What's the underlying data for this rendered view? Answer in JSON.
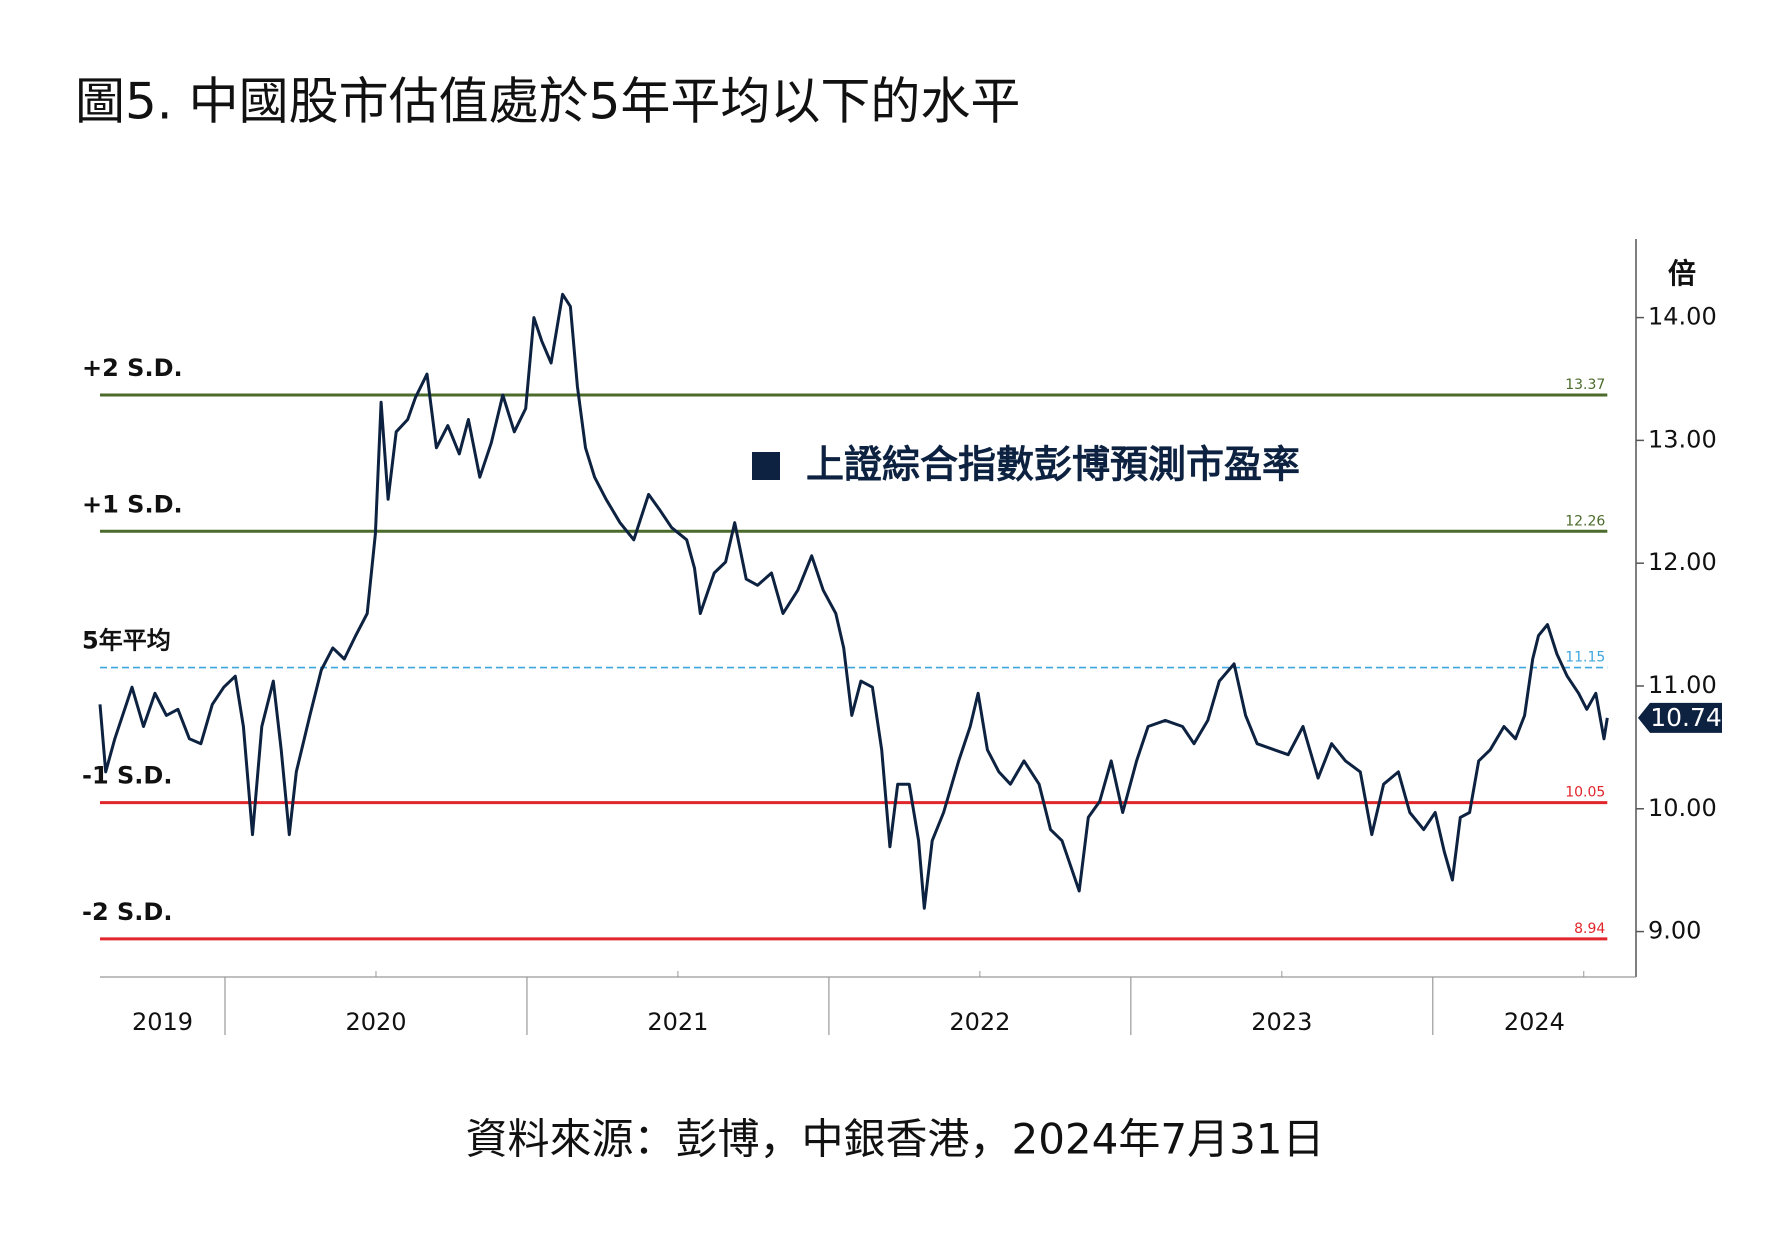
{
  "chart_data": {
    "type": "line",
    "title": "圖5. 中國股市估值處於5年平均以下的水平",
    "source": "資料來源：彭博，中銀香港，2024年7月31日",
    "y_unit": "倍",
    "xlim": [
      2019.586,
      2024.673
    ],
    "ylim": [
      8.63,
      14.64
    ],
    "xticks": [
      2019,
      2020,
      2021,
      2022,
      2023,
      2024
    ],
    "yticks": [
      {
        "value": 9,
        "label": "9.00"
      },
      {
        "value": 10,
        "label": "10.00"
      },
      {
        "value": 11,
        "label": "11.00"
      },
      {
        "value": 12,
        "label": "12.00"
      },
      {
        "value": 13,
        "label": "13.00"
      },
      {
        "value": 14,
        "label": "14.00"
      }
    ],
    "reference_lines": [
      {
        "name": "+2 S.D.",
        "value": 13.37,
        "color": "#4b6b2b",
        "dashed": false
      },
      {
        "name": "+1 S.D.",
        "value": 12.26,
        "color": "#4b6b2b",
        "dashed": false
      },
      {
        "name": "5年平均",
        "value": 11.15,
        "color": "#3ea6df",
        "dashed": true
      },
      {
        "name": "-1 S.D.",
        "value": 10.05,
        "color": "#e0262b",
        "dashed": false
      },
      {
        "name": "-2 S.D.",
        "value": 8.94,
        "color": "#e0262b",
        "dashed": false
      }
    ],
    "x": [
      2019.586,
      2019.605,
      2019.635,
      2019.692,
      2019.73,
      2019.768,
      2019.806,
      2019.844,
      2019.882,
      2019.92,
      2019.958,
      2019.996,
      2020.034,
      2020.061,
      2020.091,
      2020.122,
      2020.16,
      2020.186,
      2020.213,
      2020.236,
      2020.281,
      2020.319,
      2020.357,
      2020.395,
      2020.433,
      2020.471,
      2020.498,
      2020.517,
      2020.54,
      2020.567,
      2020.605,
      2020.631,
      2020.669,
      2020.7,
      2020.738,
      2020.776,
      2020.806,
      2020.844,
      2020.882,
      2020.92,
      2020.958,
      2020.996,
      2021.023,
      2021.049,
      2021.08,
      2021.118,
      2021.144,
      2021.167,
      2021.194,
      2021.224,
      2021.262,
      2021.308,
      2021.354,
      2021.403,
      2021.441,
      2021.479,
      2021.529,
      2021.555,
      2021.574,
      2021.62,
      2021.658,
      2021.688,
      2021.726,
      2021.764,
      2021.81,
      2021.848,
      2021.897,
      2021.943,
      2021.981,
      2022.023,
      2022.049,
      2022.076,
      2022.106,
      2022.144,
      2022.175,
      2022.202,
      2022.228,
      2022.266,
      2022.297,
      2022.316,
      2022.342,
      2022.38,
      2022.43,
      2022.468,
      2022.494,
      2022.525,
      2022.563,
      2022.601,
      2022.646,
      2022.696,
      2022.734,
      2022.772,
      2022.829,
      2022.859,
      2022.897,
      2022.935,
      2022.973,
      2023.019,
      2023.057,
      2023.114,
      2023.171,
      2023.209,
      2023.255,
      2023.293,
      2023.342,
      2023.38,
      2023.418,
      2023.475,
      2023.521,
      2023.57,
      2023.62,
      2023.665,
      2023.711,
      2023.76,
      2023.798,
      2023.837,
      2023.886,
      2023.924,
      2023.97,
      2024.008,
      2024.038,
      2024.065,
      2024.091,
      2024.122,
      2024.152,
      2024.19,
      2024.236,
      2024.274,
      2024.304,
      2024.331,
      2024.35,
      2024.38,
      2024.411,
      2024.445,
      2024.483,
      2024.51,
      2024.54,
      2024.567,
      2024.578
    ],
    "series": [
      {
        "name": "上證綜合指數彭博預測市盈率",
        "color": "#0d2240",
        "values": [
          10.85,
          10.3,
          10.57,
          10.99,
          10.67,
          10.94,
          10.76,
          10.81,
          10.57,
          10.53,
          10.85,
          10.99,
          11.08,
          10.67,
          9.79,
          10.67,
          11.04,
          10.48,
          9.79,
          10.3,
          10.76,
          11.13,
          11.31,
          11.22,
          11.41,
          11.59,
          12.24,
          13.31,
          12.52,
          13.07,
          13.17,
          13.35,
          13.54,
          12.94,
          13.12,
          12.89,
          13.17,
          12.7,
          12.98,
          13.37,
          13.07,
          13.26,
          14.0,
          13.81,
          13.63,
          14.19,
          14.09,
          13.44,
          12.94,
          12.7,
          12.52,
          12.33,
          12.19,
          12.56,
          12.43,
          12.29,
          12.19,
          11.96,
          11.59,
          11.92,
          12.01,
          12.33,
          11.87,
          11.82,
          11.92,
          11.59,
          11.78,
          12.06,
          11.78,
          11.59,
          11.31,
          10.76,
          11.04,
          10.99,
          10.48,
          9.69,
          10.2,
          10.2,
          9.74,
          9.19,
          9.74,
          9.97,
          10.39,
          10.67,
          10.94,
          10.48,
          10.3,
          10.2,
          10.39,
          10.2,
          9.83,
          9.74,
          9.33,
          9.93,
          10.06,
          10.39,
          9.97,
          10.39,
          10.67,
          10.72,
          10.67,
          10.53,
          10.72,
          11.04,
          11.18,
          10.76,
          10.53,
          10.48,
          10.44,
          10.67,
          10.25,
          10.53,
          10.39,
          10.3,
          9.79,
          10.2,
          10.3,
          9.97,
          9.83,
          9.97,
          9.65,
          9.42,
          9.93,
          9.97,
          10.39,
          10.48,
          10.67,
          10.57,
          10.76,
          11.22,
          11.41,
          11.5,
          11.26,
          11.08,
          10.94,
          10.81,
          10.94,
          10.57,
          10.74
        ]
      }
    ]
  }
}
